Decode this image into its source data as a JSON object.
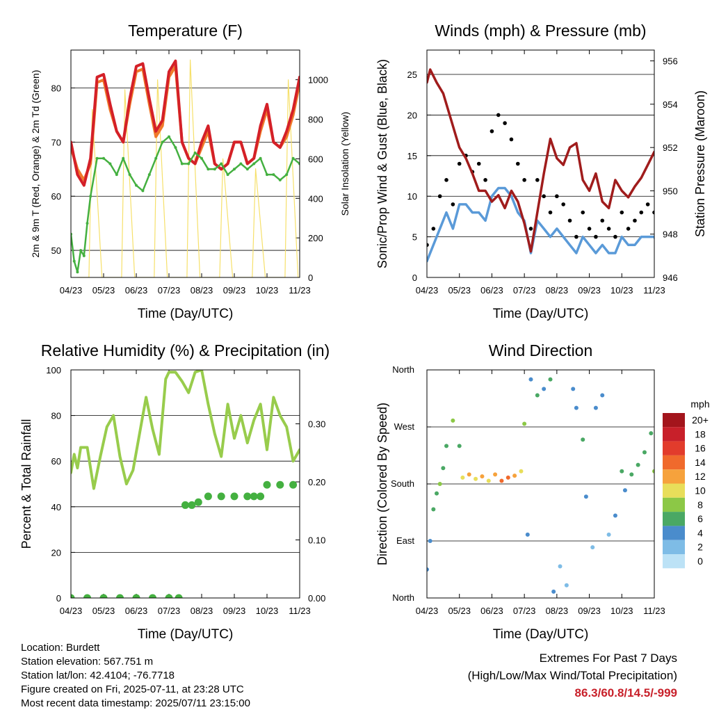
{
  "colors": {
    "t2m": "#d42028",
    "t9m": "#f07a2a",
    "td": "#44b040",
    "solar": "#f6e06a",
    "gust": "#000000",
    "wind": "#5a9ad8",
    "pressure": "#a01c1c",
    "rh": "#98cc4c",
    "precip": "#44b040",
    "extremes": "#c8202a"
  },
  "chart_data": [
    {
      "id": "temperature",
      "type": "line",
      "title": "Temperature (F)",
      "xlabel": "Time (Day/UTC)",
      "ylabel": "2m & 9m T (Red, Orange) & 2m Td (Green)",
      "ylabel_right": "Solar Insolation (Yellow)",
      "x_ticks": [
        "04/23",
        "05/23",
        "06/23",
        "07/23",
        "08/23",
        "09/23",
        "10/23",
        "11/23"
      ],
      "ylim": [
        45,
        87
      ],
      "y_ticks": [
        50,
        60,
        70,
        80
      ],
      "ylim_right": [
        0,
        1150
      ],
      "y_ticks_right": [
        0,
        200,
        400,
        600,
        800,
        1000
      ],
      "grid": true,
      "series": [
        {
          "key": "t2m",
          "x": [
            0,
            0.2,
            0.4,
            0.6,
            0.8,
            1.0,
            1.2,
            1.4,
            1.6,
            1.8,
            2.0,
            2.2,
            2.4,
            2.6,
            2.8,
            3.0,
            3.2,
            3.4,
            3.6,
            3.8,
            4.0,
            4.2,
            4.4,
            4.6,
            4.8,
            5.0,
            5.2,
            5.4,
            5.6,
            5.8,
            6.0,
            6.2,
            6.4,
            6.6,
            6.8,
            7.0,
            7.2
          ],
          "values": [
            70,
            64,
            62,
            67,
            82,
            82.5,
            77,
            72,
            70,
            78,
            84,
            84.5,
            78,
            72,
            74,
            83,
            85,
            70,
            67,
            66,
            70,
            73,
            66,
            65,
            66,
            70,
            70,
            66,
            67,
            73,
            77,
            70,
            69,
            72,
            76,
            82,
            81
          ]
        },
        {
          "key": "t9m",
          "x": [
            0,
            0.2,
            0.4,
            0.6,
            0.8,
            1.0,
            1.2,
            1.4,
            1.6,
            1.8,
            2.0,
            2.2,
            2.4,
            2.6,
            2.8,
            3.0,
            3.2,
            3.4,
            3.6,
            3.8,
            4.0,
            4.2,
            4.4,
            4.6,
            4.8,
            5.0,
            5.2,
            5.4,
            5.6,
            5.8,
            6.0,
            6.2,
            6.4,
            6.6,
            6.8,
            7.0,
            7.2
          ],
          "values": [
            69,
            65,
            63,
            66,
            81,
            81.5,
            76,
            72,
            70,
            77,
            83,
            83.5,
            77,
            71,
            73,
            82,
            84,
            70,
            67,
            66,
            69,
            72,
            66,
            65,
            66,
            70,
            70,
            66,
            67,
            72,
            76,
            70,
            69,
            71,
            75,
            81,
            80
          ]
        },
        {
          "key": "td",
          "x": [
            0,
            0.1,
            0.2,
            0.3,
            0.4,
            0.5,
            0.6,
            0.8,
            1.0,
            1.2,
            1.4,
            1.6,
            1.8,
            2.0,
            2.2,
            2.4,
            2.6,
            2.8,
            3.0,
            3.2,
            3.4,
            3.6,
            3.8,
            4.0,
            4.2,
            4.4,
            4.6,
            4.8,
            5.0,
            5.2,
            5.4,
            5.6,
            5.8,
            6.0,
            6.2,
            6.4,
            6.6,
            6.8,
            7.0,
            7.2
          ],
          "values": [
            53,
            48,
            46,
            50,
            49,
            55,
            60,
            67,
            67,
            66,
            64,
            67,
            64,
            62,
            61,
            64,
            67,
            70,
            71,
            69,
            66,
            66,
            68,
            67,
            65,
            65,
            66,
            64,
            65,
            66,
            65,
            66,
            67,
            64,
            64,
            63,
            64,
            67,
            66,
            67
          ]
        },
        {
          "key": "solar",
          "x": [
            0.2,
            0.55,
            0.65,
            0.95,
            1.2,
            1.55,
            1.65,
            1.95,
            2.2,
            2.55,
            2.65,
            2.95,
            3.2,
            3.55,
            3.65,
            3.95,
            4.2,
            4.55,
            4.65,
            4.95,
            5.2,
            5.55,
            5.65,
            5.95,
            6.2,
            6.55,
            6.65,
            6.95,
            7.2
          ],
          "values": [
            0,
            0,
            850,
            0,
            0,
            0,
            950,
            0,
            0,
            0,
            1000,
            0,
            0,
            0,
            1100,
            0,
            0,
            0,
            600,
            0,
            0,
            0,
            550,
            0,
            0,
            0,
            1000,
            0,
            0
          ]
        }
      ]
    },
    {
      "id": "winds",
      "type": "line",
      "title": "Winds (mph) & Pressure (mb)",
      "xlabel": "Time (Day/UTC)",
      "ylabel": "Sonic/Prop Wind & Gust (Blue, Black)",
      "ylabel_right": "Station Pressure (Maroon)",
      "x_ticks": [
        "04/23",
        "05/23",
        "06/23",
        "07/23",
        "08/23",
        "09/23",
        "10/23",
        "11/23"
      ],
      "ylim": [
        0,
        28
      ],
      "y_ticks": [
        0,
        5,
        10,
        15,
        20,
        25
      ],
      "ylim_right": [
        946,
        956.5
      ],
      "y_ticks_right": [
        946,
        948,
        950,
        952,
        954,
        956
      ],
      "grid": true,
      "series": [
        {
          "key": "gust",
          "x": [
            0,
            0.2,
            0.4,
            0.6,
            0.8,
            1.0,
            1.2,
            1.4,
            1.6,
            1.8,
            2.0,
            2.2,
            2.4,
            2.6,
            2.8,
            3.0,
            3.2,
            3.4,
            3.6,
            3.8,
            4.0,
            4.2,
            4.4,
            4.6,
            4.8,
            5.0,
            5.2,
            5.4,
            5.6,
            5.8,
            6.0,
            6.2,
            6.4,
            6.6,
            6.8,
            7.0,
            7.2
          ],
          "values": [
            4,
            6,
            10,
            12,
            9,
            14,
            15,
            13,
            14,
            12,
            18,
            20,
            19,
            17,
            14,
            12,
            6,
            12,
            10,
            8,
            10,
            9,
            7,
            5,
            8,
            6,
            5,
            7,
            6,
            5,
            8,
            6,
            7,
            8,
            9,
            8,
            6
          ]
        },
        {
          "key": "wind",
          "x": [
            0,
            0.2,
            0.4,
            0.6,
            0.8,
            1.0,
            1.2,
            1.4,
            1.6,
            1.8,
            2.0,
            2.2,
            2.4,
            2.6,
            2.8,
            3.0,
            3.2,
            3.4,
            3.6,
            3.8,
            4.0,
            4.2,
            4.4,
            4.6,
            4.8,
            5.0,
            5.2,
            5.4,
            5.6,
            5.8,
            6.0,
            6.2,
            6.4,
            6.6,
            6.8,
            7.0,
            7.2
          ],
          "values": [
            2,
            4,
            6,
            8,
            6,
            9,
            9,
            8,
            8,
            7,
            10,
            11,
            11,
            10,
            8,
            7,
            3,
            7,
            6,
            5,
            6,
            5,
            4,
            3,
            5,
            4,
            3,
            4,
            3,
            3,
            5,
            4,
            4,
            5,
            5,
            5,
            3
          ]
        },
        {
          "key": "pressure",
          "x": [
            0,
            0.1,
            0.3,
            0.5,
            0.7,
            0.9,
            1.0,
            1.2,
            1.4,
            1.6,
            1.8,
            2.0,
            2.2,
            2.4,
            2.6,
            2.8,
            3.0,
            3.2,
            3.4,
            3.6,
            3.8,
            4.0,
            4.2,
            4.4,
            4.6,
            4.8,
            5.0,
            5.2,
            5.4,
            5.6,
            5.8,
            6.0,
            6.2,
            6.4,
            6.6,
            6.8,
            7.0,
            7.2
          ],
          "values": [
            955,
            955.6,
            955,
            954.5,
            953.5,
            952.5,
            952,
            951.5,
            950.8,
            950,
            950,
            949.5,
            949.8,
            949.2,
            950,
            949.5,
            948.5,
            947.2,
            949,
            950.8,
            952.4,
            951.5,
            951.2,
            952,
            952.2,
            950.5,
            950,
            950.8,
            949.5,
            949.2,
            950.5,
            950,
            949.7,
            950.2,
            950.6,
            951.2,
            951.8,
            951
          ]
        }
      ]
    },
    {
      "id": "humidity",
      "type": "line",
      "title": "Relative Humidity (%) & Precipitation (in)",
      "xlabel": "Time (Day/UTC)",
      "ylabel": "Percent & Total Rainfall",
      "x_ticks": [
        "04/23",
        "05/23",
        "06/23",
        "07/23",
        "08/23",
        "09/23",
        "10/23",
        "11/23"
      ],
      "ylim": [
        0,
        100
      ],
      "y_ticks": [
        0,
        20,
        40,
        60,
        80,
        100
      ],
      "ylim_right": [
        0,
        0.3929
      ],
      "y_ticks_right": [
        "0.00",
        "0.10",
        "0.20",
        "0.30"
      ],
      "grid": true,
      "series": [
        {
          "key": "rh",
          "x": [
            0,
            0.1,
            0.2,
            0.3,
            0.5,
            0.7,
            0.9,
            1.1,
            1.3,
            1.5,
            1.7,
            1.9,
            2.1,
            2.3,
            2.5,
            2.7,
            2.9,
            3.0,
            3.2,
            3.4,
            3.6,
            3.8,
            4.0,
            4.2,
            4.4,
            4.6,
            4.8,
            5.0,
            5.2,
            5.4,
            5.6,
            5.8,
            6.0,
            6.2,
            6.4,
            6.6,
            6.8,
            7.0,
            7.2
          ],
          "values": [
            55,
            63,
            57,
            66,
            66,
            48,
            62,
            75,
            80,
            62,
            50,
            56,
            72,
            88,
            74,
            63,
            96,
            99,
            99,
            95,
            90,
            99,
            100,
            85,
            72,
            62,
            85,
            70,
            80,
            68,
            78,
            85,
            65,
            88,
            80,
            75,
            60,
            65,
            64
          ]
        },
        {
          "key": "precip",
          "x": [
            0,
            0.5,
            1,
            1.5,
            2,
            2.5,
            3,
            3.3,
            3.5,
            3.7,
            3.9,
            4.2,
            4.6,
            5,
            5.4,
            5.6,
            5.8,
            6.0,
            6.4,
            6.8,
            7.2
          ],
          "values": [
            0,
            0,
            0,
            0,
            0,
            0,
            0,
            0,
            0.16,
            0.16,
            0.165,
            0.175,
            0.175,
            0.175,
            0.175,
            0.175,
            0.175,
            0.195,
            0.195,
            0.195,
            0.195
          ]
        }
      ]
    },
    {
      "id": "direction",
      "type": "scatter",
      "title": "Wind Direction",
      "xlabel": "Time (Day/UTC)",
      "ylabel": "Direction (Colored By Speed)",
      "x_ticks": [
        "04/23",
        "05/23",
        "06/23",
        "07/23",
        "08/23",
        "09/23",
        "10/23",
        "11/23"
      ],
      "y_ticks": [
        "North",
        "East",
        "South",
        "West",
        "North"
      ],
      "ylim": [
        0,
        360
      ],
      "grid": true,
      "legend": {
        "title": "mph",
        "labels": [
          "20+",
          "18",
          "16",
          "14",
          "12",
          "10",
          "8",
          "6",
          "4",
          "2",
          "0"
        ],
        "colors": [
          "#a3151c",
          "#c8202a",
          "#e23c2c",
          "#f06a2c",
          "#f6a23c",
          "#e8de5a",
          "#8cc846",
          "#4aa864",
          "#4a8ccc",
          "#7ebce6",
          "#bce2f6"
        ]
      },
      "points": [
        {
          "x": 0,
          "dir": 45,
          "speed": 3
        },
        {
          "x": 0.1,
          "dir": 90,
          "speed": 4
        },
        {
          "x": 0.2,
          "dir": 140,
          "speed": 5
        },
        {
          "x": 0.3,
          "dir": 165,
          "speed": 6
        },
        {
          "x": 0.4,
          "dir": 180,
          "speed": 7
        },
        {
          "x": 0.5,
          "dir": 205,
          "speed": 6
        },
        {
          "x": 0.6,
          "dir": 240,
          "speed": 6
        },
        {
          "x": 0.8,
          "dir": 280,
          "speed": 8
        },
        {
          "x": 1.0,
          "dir": 240,
          "speed": 5
        },
        {
          "x": 1.1,
          "dir": 190,
          "speed": 10
        },
        {
          "x": 1.3,
          "dir": 195,
          "speed": 12
        },
        {
          "x": 1.5,
          "dir": 188,
          "speed": 9
        },
        {
          "x": 1.7,
          "dir": 192,
          "speed": 11
        },
        {
          "x": 1.9,
          "dir": 185,
          "speed": 10
        },
        {
          "x": 2.1,
          "dir": 195,
          "speed": 12
        },
        {
          "x": 2.3,
          "dir": 185,
          "speed": 13
        },
        {
          "x": 2.5,
          "dir": 190,
          "speed": 14
        },
        {
          "x": 2.7,
          "dir": 193,
          "speed": 11
        },
        {
          "x": 2.9,
          "dir": 200,
          "speed": 9
        },
        {
          "x": 3.0,
          "dir": 275,
          "speed": 8
        },
        {
          "x": 3.1,
          "dir": 100,
          "speed": 3
        },
        {
          "x": 3.2,
          "dir": 345,
          "speed": 4
        },
        {
          "x": 3.4,
          "dir": 320,
          "speed": 5
        },
        {
          "x": 3.6,
          "dir": 330,
          "speed": 4
        },
        {
          "x": 3.8,
          "dir": 345,
          "speed": 5
        },
        {
          "x": 3.9,
          "dir": 10,
          "speed": 3
        },
        {
          "x": 4.1,
          "dir": 50,
          "speed": 2
        },
        {
          "x": 4.3,
          "dir": 20,
          "speed": 2
        },
        {
          "x": 4.5,
          "dir": 330,
          "speed": 3
        },
        {
          "x": 4.6,
          "dir": 300,
          "speed": 4
        },
        {
          "x": 4.8,
          "dir": 250,
          "speed": 5
        },
        {
          "x": 4.9,
          "dir": 160,
          "speed": 3
        },
        {
          "x": 5.1,
          "dir": 80,
          "speed": 2
        },
        {
          "x": 5.2,
          "dir": 300,
          "speed": 4
        },
        {
          "x": 5.4,
          "dir": 320,
          "speed": 3
        },
        {
          "x": 5.6,
          "dir": 100,
          "speed": 2
        },
        {
          "x": 5.8,
          "dir": 130,
          "speed": 3
        },
        {
          "x": 6.0,
          "dir": 200,
          "speed": 5
        },
        {
          "x": 6.1,
          "dir": 170,
          "speed": 4
        },
        {
          "x": 6.3,
          "dir": 195,
          "speed": 6
        },
        {
          "x": 6.5,
          "dir": 210,
          "speed": 5
        },
        {
          "x": 6.7,
          "dir": 230,
          "speed": 6
        },
        {
          "x": 6.9,
          "dir": 260,
          "speed": 5
        },
        {
          "x": 7.0,
          "dir": 200,
          "speed": 7
        },
        {
          "x": 7.1,
          "dir": 280,
          "speed": 4
        },
        {
          "x": 7.15,
          "dir": 330,
          "speed": 3
        }
      ]
    }
  ],
  "info": {
    "location": "Location: Burdett",
    "elevation": "Station elevation: 567.751 m",
    "latlon": "Station lat/lon: 42.4104; -76.7718",
    "created": "Figure created on Fri, 2025-07-11, at 23:28 UTC",
    "recent": "Most recent data timestamp: 2025/07/11 23:15:00"
  },
  "extremes": {
    "line1": "Extremes For Past 7 Days",
    "line2": "(High/Low/Max Wind/Total Precipitation)",
    "values": "86.3/60.8/14.5/-999"
  }
}
